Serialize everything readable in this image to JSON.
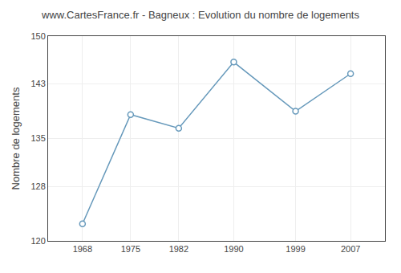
{
  "chart_data": {
    "type": "line",
    "title": "www.CartesFrance.fr - Bagneux : Evolution du nombre de logements",
    "ylabel": "Nombre de logements",
    "x": [
      1968,
      1975,
      1982,
      1990,
      1999,
      2007
    ],
    "values": [
      122.5,
      138.5,
      136.5,
      146.2,
      139.0,
      144.5
    ],
    "xlim": [
      1963,
      2012
    ],
    "xticks": [
      1968,
      1975,
      1982,
      1990,
      1999,
      2007
    ],
    "ylim": [
      120,
      150
    ],
    "yticks": [
      120,
      128,
      135,
      143,
      150
    ],
    "grid": true,
    "color": "#6699bb",
    "marker": "circle"
  }
}
